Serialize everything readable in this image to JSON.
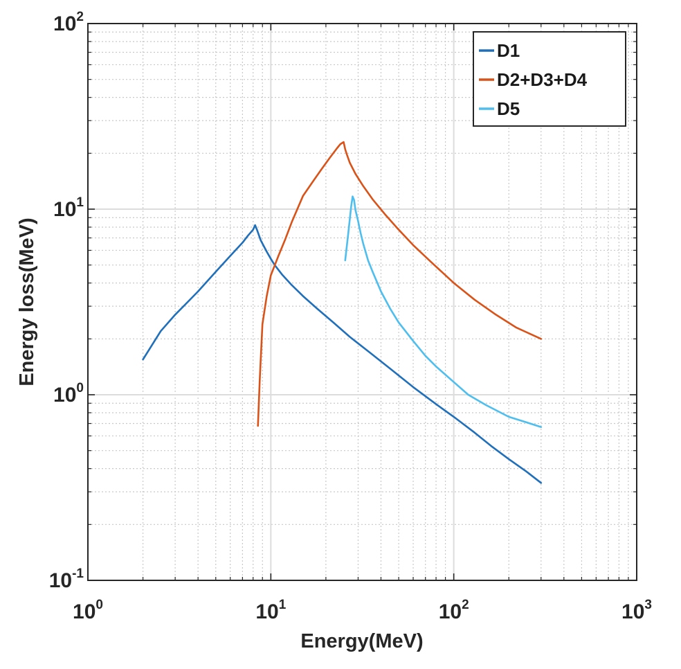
{
  "chart_data": {
    "type": "line",
    "x_scale": "log",
    "y_scale": "log",
    "xlabel": "Energy(MeV)",
    "ylabel": "Energy loss(MeV)",
    "xlim": [
      1,
      1000
    ],
    "ylim": [
      0.1,
      100
    ],
    "x_ticks": [
      {
        "value": 1,
        "base": "10",
        "exp": "0"
      },
      {
        "value": 10,
        "base": "10",
        "exp": "1"
      },
      {
        "value": 100,
        "base": "10",
        "exp": "2"
      },
      {
        "value": 1000,
        "base": "10",
        "exp": "3"
      }
    ],
    "y_ticks": [
      {
        "value": 0.1,
        "base": "10",
        "exp": "-1"
      },
      {
        "value": 1,
        "base": "10",
        "exp": "0"
      },
      {
        "value": 10,
        "base": "10",
        "exp": "1"
      },
      {
        "value": 100,
        "base": "10",
        "exp": "2"
      }
    ],
    "grid": "major-and-minor",
    "legend_position": "top-right",
    "series": [
      {
        "name": "D1",
        "color": "#1f6fba",
        "x": [
          2,
          2.5,
          3,
          3.5,
          4,
          5,
          6,
          7,
          7.5,
          8,
          8.2,
          8.4,
          8.8,
          9.5,
          10,
          10.5,
          11.5,
          13,
          15,
          18,
          22,
          27,
          35,
          45,
          60,
          80,
          100,
          130,
          160,
          200,
          250,
          300
        ],
        "y": [
          1.55,
          2.2,
          2.7,
          3.15,
          3.6,
          4.6,
          5.6,
          6.6,
          7.2,
          7.75,
          8.2,
          7.75,
          6.8,
          5.9,
          5.4,
          5.0,
          4.45,
          3.9,
          3.4,
          2.9,
          2.45,
          2.05,
          1.68,
          1.38,
          1.1,
          0.89,
          0.76,
          0.625,
          0.53,
          0.45,
          0.385,
          0.335
        ]
      },
      {
        "name": "D2+D3+D4",
        "color": "#d95319",
        "x": [
          8.5,
          8.7,
          9,
          9.5,
          10,
          11,
          12,
          13,
          15,
          17,
          19,
          21,
          23,
          24,
          25,
          25.5,
          26,
          27,
          29,
          32,
          36,
          42,
          50,
          60,
          75,
          100,
          130,
          170,
          220,
          300
        ],
        "y": [
          0.68,
          1.2,
          2.4,
          3.4,
          4.4,
          5.6,
          6.9,
          8.5,
          11.8,
          14.1,
          16.5,
          18.9,
          21.3,
          22.4,
          23.0,
          21.0,
          19.8,
          17.8,
          15.5,
          13.3,
          11.3,
          9.4,
          7.75,
          6.4,
          5.2,
          4.0,
          3.25,
          2.7,
          2.3,
          2.0
        ]
      },
      {
        "name": "D5",
        "color": "#4dbeee",
        "x": [
          25.5,
          26.5,
          27.5,
          28,
          28.5,
          29,
          30,
          31,
          32,
          34,
          36,
          40,
          45,
          50,
          60,
          70,
          80,
          100,
          120,
          150,
          200,
          250,
          300
        ],
        "y": [
          5.3,
          7.4,
          10.4,
          11.7,
          11.2,
          9.9,
          8.6,
          7.4,
          6.5,
          5.3,
          4.6,
          3.6,
          2.9,
          2.45,
          1.95,
          1.62,
          1.42,
          1.17,
          1.0,
          0.88,
          0.76,
          0.71,
          0.67
        ]
      }
    ]
  }
}
